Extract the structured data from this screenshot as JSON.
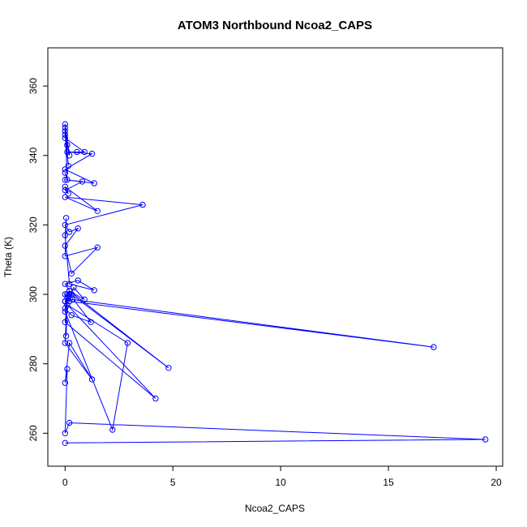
{
  "chart_data": {
    "type": "line",
    "title": "ATOM3 Northbound Ncoa2_CAPS",
    "xlabel": "Ncoa2_CAPS",
    "ylabel": "Theta (K)",
    "xlim": [
      -0.8,
      20.3
    ],
    "ylim": [
      250.5,
      371
    ],
    "x_ticks": [
      0,
      5,
      10,
      15,
      20
    ],
    "y_ticks": [
      260,
      280,
      300,
      320,
      340,
      360
    ],
    "x_tick_labels": [
      "0",
      "5",
      "10",
      "15",
      "20"
    ],
    "y_tick_labels": [
      "260",
      "280",
      "300",
      "320",
      "340",
      "360"
    ],
    "grid": false,
    "markers": "open-circle",
    "series": [
      {
        "color": "#0000ff",
        "x": [
          0.0,
          19.5,
          0.2,
          0.0,
          0.1,
          0.0,
          0.2,
          1.25,
          0.0,
          0.1,
          0.05,
          0.1,
          0.0,
          2.2,
          2.9,
          0.1,
          0.0,
          4.2,
          0.1,
          0.0,
          0.3,
          4.8,
          0.2,
          0.0,
          0.35,
          17.1,
          0.2,
          0.0,
          0.2,
          1.2,
          0.3,
          0.0,
          0.4,
          0.9,
          0.2,
          0.0,
          0.6,
          1.35,
          0.2,
          0.0,
          0.05,
          0.0,
          1.5,
          0.3,
          0.0,
          0.6,
          0.2,
          0.0,
          3.6,
          0.0,
          1.5,
          0.0,
          0.15,
          0.0,
          0.8,
          0.0,
          1.35,
          0.0,
          1.25,
          0.1,
          0.55,
          0.9,
          0.0,
          0.0,
          0.1,
          0.0,
          0.2,
          0.0,
          0.15,
          0.0,
          0.1,
          0.0
        ],
        "y": [
          257.2,
          258.2,
          263,
          260,
          278.5,
          274.5,
          286,
          275.5,
          286,
          300,
          288,
          299,
          295,
          261,
          286,
          297,
          292,
          270,
          297,
          298,
          300,
          278.8,
          301,
          298,
          298.5,
          284.8,
          298,
          300,
          300,
          292,
          294,
          296,
          302,
          298.5,
          301,
          303,
          304,
          301.2,
          303,
          317,
          322,
          311,
          313.5,
          306,
          314,
          319,
          318,
          320,
          325.8,
          328,
          324,
          331,
          329,
          330,
          332.5,
          333,
          332,
          336,
          340.5,
          341,
          341,
          341,
          345,
          347,
          343,
          349,
          340,
          346,
          337,
          348,
          333,
          335
        ]
      }
    ]
  }
}
